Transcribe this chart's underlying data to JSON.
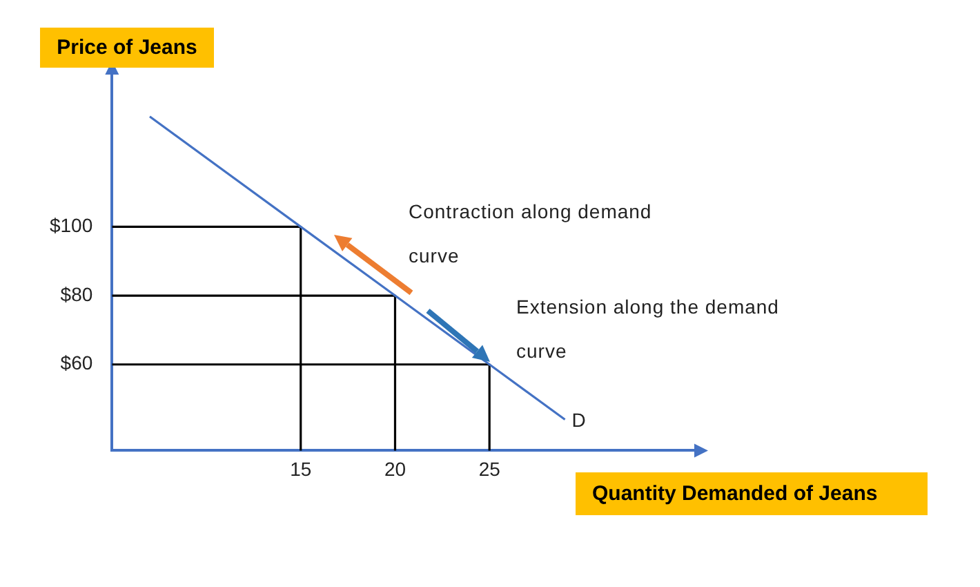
{
  "chart_data": {
    "type": "line",
    "xlabel": "Quantity Demanded of Jeans",
    "ylabel": "Price of Jeans",
    "xlim": [
      5,
      36
    ],
    "ylim": [
      35,
      145
    ],
    "xticks": [
      15,
      20,
      25
    ],
    "yticks": [
      {
        "value": 60,
        "label": "$60"
      },
      {
        "value": 80,
        "label": "$80"
      },
      {
        "value": 100,
        "label": "$100"
      }
    ],
    "grid": false,
    "legend": false,
    "marker": "none",
    "line_style": "solid",
    "series": [
      {
        "name": "D",
        "color": "#4472c4",
        "x": [
          7,
          15,
          20,
          25,
          29
        ],
        "values": [
          132,
          100,
          80,
          60,
          44
        ]
      },
      {
        "color": "#000000",
        "x": [
          5,
          15,
          15
        ],
        "values": [
          100,
          100,
          35
        ]
      },
      {
        "color": "#000000",
        "x": [
          5,
          20,
          20
        ],
        "values": [
          80,
          80,
          35
        ]
      },
      {
        "color": "#000000",
        "x": [
          5,
          25,
          25
        ],
        "values": [
          60,
          60,
          35
        ]
      }
    ],
    "annotations": [
      "Contraction along demand curve",
      "Extension along the demand curve"
    ]
  }
}
